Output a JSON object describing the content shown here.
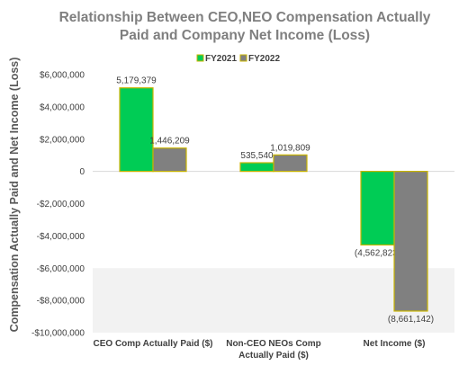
{
  "chart_data": {
    "type": "bar",
    "title_lines": [
      "Relationship Between CEO,NEO Compensation Actually",
      "Paid and Company Net Income (Loss)"
    ],
    "ylabel": "Compensation Actually Paid and Net Income (Loss)",
    "xlabel": "",
    "categories": [
      [
        "CEO Comp Actually Paid ($)"
      ],
      [
        "Non-CEO NEOs Comp",
        "Actually Paid ($)"
      ],
      [
        "Net Income ($)"
      ]
    ],
    "series": [
      {
        "name": "FY2021",
        "color": "#00cc55",
        "border": "#c8b400",
        "values": [
          5179379,
          535540,
          -4562823
        ],
        "labels": [
          "5,179,379",
          "535,540",
          "(4,562,823)"
        ]
      },
      {
        "name": "FY2022",
        "color": "#808080",
        "border": "#c8b400",
        "values": [
          1446209,
          1019809,
          -8661142
        ],
        "labels": [
          "1,446,209",
          "1,019,809",
          "(8,661,142)"
        ]
      }
    ],
    "ylim": [
      -10000000,
      6000000
    ],
    "yticks": [
      6000000,
      4000000,
      2000000,
      0,
      -2000000,
      -4000000,
      -6000000,
      -8000000,
      -10000000
    ],
    "ytick_labels": [
      "$6,000,000",
      "$4,000,000",
      "$2,000,000",
      "0",
      "-$2,000,000",
      "-$4,000,000",
      "-$6,000,000",
      "-$8,000,000",
      "-$10,000,000"
    ],
    "shaded_band": [
      -10000000,
      -6000000
    ],
    "shaded_color": "#f2f2f2",
    "legend_position": "top-center",
    "grid": false
  }
}
